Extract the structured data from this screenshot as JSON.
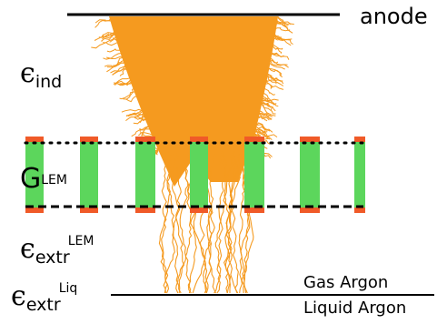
{
  "labels": {
    "anode": "anode",
    "e_ind_symbol": "ϵ",
    "e_ind_sub": "ind",
    "g_lem_symbol": "G",
    "g_lem_sub": "LEM",
    "e_extr_lem_symbol": "ϵ",
    "e_extr_lem_sub": "extr",
    "e_extr_lem_sup": "LEM",
    "e_extr_liq_symbol": "ϵ",
    "e_extr_liq_sub": "extr",
    "e_extr_liq_sup": "Liq",
    "gas_argon": "Gas Argon",
    "liquid_argon": "Liquid Argon"
  },
  "colors": {
    "avalanche": "#f59a1f",
    "lem_insulator": "#5cd65c",
    "lem_electrode": "#f05a28",
    "line": "#000000"
  },
  "lem": {
    "insulator_count": 7
  }
}
